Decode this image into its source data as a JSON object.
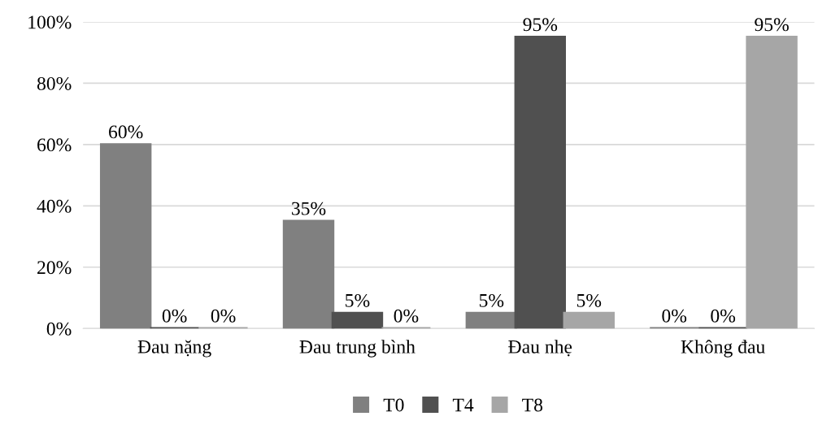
{
  "chart_data": {
    "type": "bar",
    "categories": [
      "Đau nặng",
      "Đau trung bình",
      "Đau nhẹ",
      "Không đau"
    ],
    "series": [
      {
        "name": "T0",
        "color": "#808080",
        "values": [
          60,
          35,
          5,
          0
        ],
        "value_labels": [
          "60%",
          "35%",
          "5%",
          "0%"
        ]
      },
      {
        "name": "T4",
        "color": "#505050",
        "values": [
          0,
          5,
          95,
          0
        ],
        "value_labels": [
          "0%",
          "5%",
          "95%",
          "0%"
        ]
      },
      {
        "name": "T8",
        "color": "#a6a6a6",
        "values": [
          0,
          0,
          5,
          95
        ],
        "value_labels": [
          "0%",
          "0%",
          "5%",
          "95%"
        ]
      }
    ],
    "ylim": [
      0,
      100
    ],
    "yticks": [
      {
        "value": 0,
        "label": "0%"
      },
      {
        "value": 20,
        "label": "20%"
      },
      {
        "value": 40,
        "label": "40%"
      },
      {
        "value": 60,
        "label": "60%"
      },
      {
        "value": 80,
        "label": "80%"
      },
      {
        "value": 100,
        "label": "100%"
      }
    ],
    "grid": "y",
    "legend": "bottom"
  }
}
